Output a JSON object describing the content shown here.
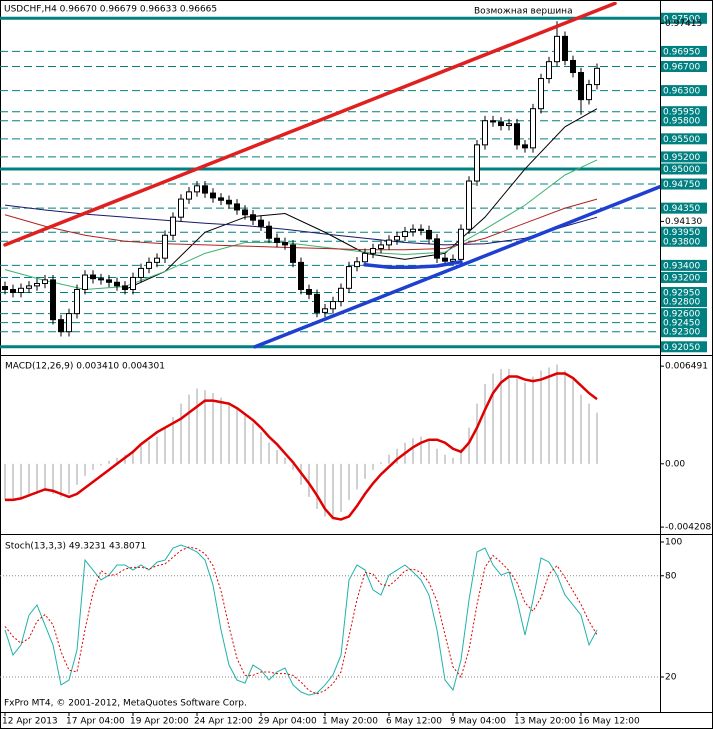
{
  "chart_data": [
    {
      "type": "candlestick",
      "title": "USDCHF,H4 0.96670 0.96679 0.96633 0.96665",
      "annotation": "Возможная вершина",
      "annotation_color": "#1f3fd0",
      "ylim": [
        0.9193,
        0.9777
      ],
      "yticks": [
        0.97415,
        {
          "value": 0.9413,
          "label": "0.94130"
        }
      ],
      "candle_color": "#000000",
      "candles": {
        "open": [
          0.9305,
          0.93,
          0.9295,
          0.9302,
          0.9306,
          0.931,
          0.9316,
          0.925,
          0.923,
          0.926,
          0.93,
          0.9324,
          0.9318,
          0.9316,
          0.9312,
          0.9306,
          0.93,
          0.932,
          0.9335,
          0.9345,
          0.9352,
          0.939,
          0.942,
          0.945,
          0.9462,
          0.9472,
          0.946,
          0.9452,
          0.9448,
          0.9442,
          0.9432,
          0.9424,
          0.9415,
          0.9405,
          0.9385,
          0.9378,
          0.9374,
          0.9345,
          0.93,
          0.9292,
          0.9262,
          0.9268,
          0.928,
          0.9302,
          0.9338,
          0.9346,
          0.936,
          0.9368,
          0.9374,
          0.9382,
          0.9388,
          0.9396,
          0.94,
          0.9398,
          0.9384,
          0.9352,
          0.9347,
          0.935,
          0.94,
          0.948,
          0.954,
          0.958,
          0.9578,
          0.9572,
          0.9575,
          0.954,
          0.9535,
          0.96,
          0.965,
          0.9678,
          0.972,
          0.968,
          0.966,
          0.9615,
          0.964
        ],
        "high": [
          0.9313,
          0.9308,
          0.931,
          0.9314,
          0.9318,
          0.9324,
          0.9324,
          0.9258,
          0.9268,
          0.9308,
          0.9332,
          0.9332,
          0.9326,
          0.9324,
          0.932,
          0.9314,
          0.9328,
          0.9343,
          0.9353,
          0.936,
          0.9398,
          0.9428,
          0.9458,
          0.947,
          0.948,
          0.948,
          0.9468,
          0.946,
          0.9456,
          0.945,
          0.944,
          0.9432,
          0.9423,
          0.9413,
          0.9393,
          0.9386,
          0.9382,
          0.9353,
          0.9308,
          0.93,
          0.9276,
          0.9288,
          0.931,
          0.9346,
          0.9354,
          0.9368,
          0.9376,
          0.9382,
          0.939,
          0.9396,
          0.9404,
          0.9408,
          0.9408,
          0.9406,
          0.9392,
          0.936,
          0.9358,
          0.9408,
          0.9488,
          0.9548,
          0.9588,
          0.9588,
          0.9586,
          0.9583,
          0.9583,
          0.9548,
          0.9608,
          0.9658,
          0.9686,
          0.9745,
          0.9728,
          0.9688,
          0.9668,
          0.9648,
          0.9675
        ],
        "low": [
          0.9292,
          0.9287,
          0.9287,
          0.9294,
          0.9298,
          0.9302,
          0.9242,
          0.9222,
          0.9222,
          0.9252,
          0.9292,
          0.931,
          0.9308,
          0.9304,
          0.9298,
          0.9292,
          0.9292,
          0.9312,
          0.9327,
          0.9337,
          0.9344,
          0.9382,
          0.9412,
          0.9442,
          0.9454,
          0.9452,
          0.9444,
          0.944,
          0.9434,
          0.9424,
          0.9416,
          0.9407,
          0.9397,
          0.9377,
          0.937,
          0.9366,
          0.9337,
          0.9292,
          0.9284,
          0.9254,
          0.9254,
          0.926,
          0.9272,
          0.9294,
          0.933,
          0.9338,
          0.9352,
          0.936,
          0.9366,
          0.9374,
          0.938,
          0.9388,
          0.939,
          0.9376,
          0.9344,
          0.9339,
          0.9339,
          0.9342,
          0.9392,
          0.9472,
          0.9532,
          0.957,
          0.9564,
          0.9564,
          0.9532,
          0.9527,
          0.9527,
          0.9592,
          0.9642,
          0.967,
          0.9672,
          0.9652,
          0.959,
          0.9607,
          0.9632
        ],
        "close": [
          0.93,
          0.9295,
          0.9302,
          0.9306,
          0.931,
          0.9316,
          0.925,
          0.923,
          0.926,
          0.93,
          0.9324,
          0.9318,
          0.9316,
          0.9312,
          0.9306,
          0.93,
          0.932,
          0.9335,
          0.9345,
          0.9352,
          0.939,
          0.942,
          0.945,
          0.9462,
          0.9472,
          0.946,
          0.9452,
          0.9448,
          0.9442,
          0.9432,
          0.9424,
          0.9415,
          0.9405,
          0.9385,
          0.9378,
          0.9374,
          0.9345,
          0.93,
          0.9292,
          0.9262,
          0.9268,
          0.928,
          0.9302,
          0.9338,
          0.9346,
          0.936,
          0.9368,
          0.9374,
          0.9382,
          0.9388,
          0.9396,
          0.94,
          0.9398,
          0.9384,
          0.9352,
          0.9347,
          0.935,
          0.94,
          0.948,
          0.954,
          0.958,
          0.9578,
          0.9572,
          0.9575,
          0.954,
          0.9535,
          0.96,
          0.965,
          0.9678,
          0.972,
          0.968,
          0.966,
          0.9615,
          0.964,
          0.9667
        ]
      },
      "moving_averages": {
        "x": [
          0,
          5,
          10,
          15,
          20,
          25,
          30,
          35,
          40,
          45,
          50,
          55,
          60,
          65,
          70,
          74
        ],
        "series": [
          {
            "color": "#000000",
            "values": [
              null,
              null,
              null,
              0.93,
              0.933,
              0.9395,
              0.942,
              0.9426,
              0.9395,
              0.936,
              0.935,
              0.936,
              0.942,
              0.95,
              0.957,
              0.96
            ]
          },
          {
            "color": "#3cb371",
            "values": [
              0.9333,
              0.9315,
              0.93,
              0.9305,
              0.933,
              0.936,
              0.9378,
              0.9378,
              0.937,
              0.9362,
              0.9358,
              0.9362,
              0.94,
              0.944,
              0.949,
              0.9515
            ]
          },
          {
            "color": "#b22222",
            "values": [
              0.9424,
              0.9405,
              0.939,
              0.938,
              0.9376,
              0.9374,
              0.9372,
              0.937,
              0.9368,
              0.9366,
              0.9366,
              0.9368,
              0.9385,
              0.941,
              0.9435,
              0.945
            ]
          },
          {
            "color": "#191970",
            "values": [
              0.944,
              0.9432,
              0.9425,
              0.942,
              0.9415,
              0.941,
              0.9406,
              0.94,
              0.9392,
              0.9385,
              0.9378,
              0.9374,
              0.9376,
              0.9385,
              0.9405,
              0.942
            ]
          }
        ]
      },
      "trendlines": [
        {
          "color": "#e02020",
          "x": [
            0,
            76.25
          ],
          "y": [
            0.9374,
            0.97748
          ]
        },
        {
          "color": "#1f3fd0",
          "x": [
            31.25,
            83.1
          ],
          "y": [
            0.9205,
            0.9477
          ]
        },
        {
          "color": "#1f3fd0",
          "x": [
            45,
            48,
            51,
            54,
            57
          ],
          "y": [
            0.9341,
            0.9337,
            0.9337,
            0.9339,
            0.9346
          ]
        }
      ],
      "level_color": "#008080",
      "levels": [
        {
          "value": 0.975,
          "label": "0.97500",
          "style": "solid"
        },
        {
          "value": 0.9695,
          "label": "0.96950",
          "style": "dashed"
        },
        {
          "value": 0.967,
          "label": "0.96700",
          "style": "dashed"
        },
        {
          "value": 0.963,
          "label": "0.96300",
          "style": "dashed"
        },
        {
          "value": 0.9595,
          "label": "0.95950",
          "style": "dashed"
        },
        {
          "value": 0.958,
          "label": "0.95800",
          "style": "dashed"
        },
        {
          "value": 0.955,
          "label": "0.95500",
          "style": "dashed"
        },
        {
          "value": 0.952,
          "label": "0.95200",
          "style": "dashed"
        },
        {
          "value": 0.95,
          "label": "0.95000",
          "style": "solid"
        },
        {
          "value": 0.9475,
          "label": "0.94750",
          "style": "dashed"
        },
        {
          "value": 0.9435,
          "label": "0.94350",
          "style": "dashed"
        },
        {
          "value": 0.9395,
          "label": "0.93950",
          "style": "dashed"
        },
        {
          "value": 0.938,
          "label": "0.93800",
          "style": "dashed"
        },
        {
          "value": 0.934,
          "label": "0.93400",
          "style": "dashed"
        },
        {
          "value": 0.932,
          "label": "0.93200",
          "style": "dashed"
        },
        {
          "value": 0.9295,
          "label": "0.92950",
          "style": "dashed"
        },
        {
          "value": 0.928,
          "label": "0.92800",
          "style": "dashed"
        },
        {
          "value": 0.926,
          "label": "0.92600",
          "style": "dashed"
        },
        {
          "value": 0.9245,
          "label": "0.92450",
          "style": "dashed"
        },
        {
          "value": 0.923,
          "label": "0.92300",
          "style": "dashed"
        },
        {
          "value": 0.9205,
          "label": "0.92050",
          "style": "solid"
        }
      ]
    },
    {
      "type": "macd",
      "title": "MACD(12,26,9) 0.003410 0.004301",
      "ylim": [
        -0.0046,
        0.0071
      ],
      "yticks": [
        0.006491,
        {
          "value": 0,
          "label": "0.00"
        },
        -0.004208
      ],
      "histogram_color": "#c0c0c0",
      "histogram": [
        -0.0024,
        -0.0024,
        -0.0023,
        -0.0022,
        -0.002,
        -0.0018,
        -0.002,
        -0.0022,
        -0.002,
        -0.0014,
        -0.0008,
        -0.0004,
        -0.0001,
        0.0002,
        0.0004,
        0.0006,
        0.0009,
        0.0012,
        0.0015,
        0.0018,
        0.0024,
        0.0031,
        0.004,
        0.0046,
        0.005,
        0.0049,
        0.0047,
        0.0044,
        0.0041,
        0.0037,
        0.0032,
        0.0027,
        0.0021,
        0.0014,
        0.0009,
        0.0004,
        -0.0004,
        -0.0014,
        -0.0022,
        -0.003,
        -0.0035,
        -0.0036,
        -0.0032,
        -0.0024,
        -0.0017,
        -0.001,
        -0.0004,
        0.0001,
        0.0006,
        0.001,
        0.0014,
        0.0017,
        0.0018,
        0.0016,
        0.001,
        0.0006,
        0.0004,
        0.001,
        0.0024,
        0.004,
        0.0053,
        0.006,
        0.0063,
        0.0063,
        0.0058,
        0.0054,
        0.0058,
        0.0062,
        0.0064,
        0.0066,
        0.0062,
        0.0056,
        0.0046,
        0.004,
        0.0034
      ],
      "signal_color": "#e00000",
      "signal": [
        -0.0024,
        -0.0024,
        -0.0023,
        -0.0021,
        -0.0019,
        -0.0017,
        -0.0018,
        -0.002,
        -0.0022,
        -0.002,
        -0.0016,
        -0.0012,
        -0.0008,
        -0.0004,
        0.0,
        0.0004,
        0.0008,
        0.0013,
        0.0017,
        0.0021,
        0.0024,
        0.0027,
        0.003,
        0.0034,
        0.0038,
        0.0042,
        0.0042,
        0.0041,
        0.004,
        0.0037,
        0.0033,
        0.0029,
        0.0024,
        0.0018,
        0.0013,
        0.0007,
        0.0001,
        -0.0006,
        -0.0013,
        -0.0021,
        -0.003,
        -0.0036,
        -0.0037,
        -0.0035,
        -0.0028,
        -0.002,
        -0.0013,
        -0.0007,
        -0.0002,
        0.0003,
        0.0007,
        0.0011,
        0.0014,
        0.0016,
        0.0016,
        0.0014,
        0.001,
        0.0008,
        0.0014,
        0.0024,
        0.0036,
        0.0047,
        0.0054,
        0.0058,
        0.0058,
        0.0056,
        0.0055,
        0.0056,
        0.0058,
        0.006,
        0.006,
        0.0057,
        0.0052,
        0.0047,
        0.0043
      ]
    },
    {
      "type": "stochastic",
      "title": "Stoch(13,3,3) 49.3231 43.8071",
      "footer": "FxPro MT4, © 2001-2012, MetaQuotes Software Corp.",
      "ylim": [
        -0.74,
        103.56
      ],
      "yticks": [
        100,
        80,
        20
      ],
      "levels": [
        80,
        20
      ],
      "k_color": "#20b2aa",
      "k": [
        47.9,
        33.0,
        39.0,
        56.7,
        62.7,
        50.8,
        39.0,
        15.3,
        18.2,
        36.0,
        89.3,
        83.4,
        77.5,
        80.4,
        86.4,
        86.4,
        83.4,
        86.4,
        83.4,
        88.1,
        89.3,
        96.4,
        98.2,
        96.4,
        94.1,
        89.3,
        74.5,
        47.9,
        27.1,
        18.2,
        16.4,
        27.1,
        24.1,
        18.2,
        23.0,
        25.3,
        15.3,
        11.1,
        9.3,
        10.5,
        15.3,
        21.2,
        33.0,
        77.5,
        86.4,
        83.4,
        71.6,
        68.6,
        80.4,
        83.4,
        86.4,
        82.2,
        77.5,
        68.6,
        47.9,
        18.2,
        12.3,
        30.1,
        65.6,
        94.1,
        96.4,
        86.4,
        80.4,
        82.2,
        65.6,
        44.9,
        65.6,
        90.5,
        88.1,
        80.4,
        68.6,
        62.7,
        56.7,
        39.0,
        47.9
      ],
      "d_color": "#e00000",
      "d": [
        50,
        44,
        40,
        43,
        53,
        57,
        51,
        35,
        24,
        23,
        48,
        70,
        83,
        80,
        81,
        84,
        85,
        85,
        84,
        86,
        87,
        91,
        95,
        97,
        96,
        93,
        86,
        71,
        50,
        31,
        21,
        21,
        23,
        23,
        22,
        22,
        21,
        17,
        12,
        10,
        12,
        16,
        23,
        44,
        66,
        82,
        81,
        75,
        74,
        78,
        83,
        84,
        82,
        76,
        65,
        45,
        26,
        20,
        36,
        63,
        85,
        92,
        88,
        83,
        76,
        64,
        59,
        67,
        81,
        86,
        79,
        71,
        63,
        53,
        45
      ],
      "categories": [
        "12 Apr 2013",
        null,
        null,
        null,
        null,
        null,
        null,
        null,
        "17 Apr 04:00",
        null,
        null,
        null,
        null,
        null,
        null,
        null,
        "19 Apr 20:00",
        null,
        null,
        null,
        null,
        null,
        null,
        null,
        "24 Apr 12:00",
        null,
        null,
        null,
        null,
        null,
        null,
        null,
        "29 Apr 04:00",
        null,
        null,
        null,
        null,
        null,
        null,
        null,
        "1 May 20:00",
        null,
        null,
        null,
        null,
        null,
        null,
        null,
        "6 May 12:00",
        null,
        null,
        null,
        null,
        null,
        null,
        null,
        "9 May 04:00",
        null,
        null,
        null,
        null,
        null,
        null,
        null,
        "13 May 20:00",
        null,
        null,
        null,
        null,
        null,
        null,
        null,
        "16 May 12:00",
        null,
        null
      ]
    }
  ]
}
